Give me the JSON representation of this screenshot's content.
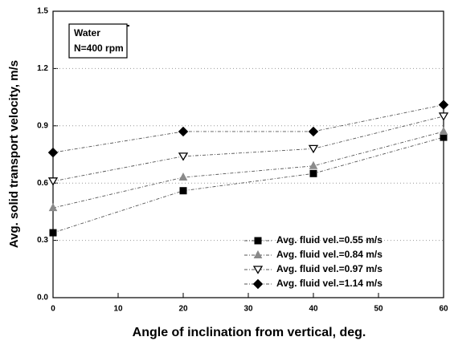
{
  "chart_data": {
    "type": "line",
    "xlabel": "Angle of inclination from vertical, deg.",
    "ylabel": "Avg. solid transport velocity, m/s",
    "annotation": [
      "Water",
      "N=400 rpm"
    ],
    "x": [
      0,
      20,
      40,
      60
    ],
    "series": [
      {
        "name": "Avg. fluid vel.=0.55 m/s",
        "color": "#000000",
        "marker": "square",
        "values": [
          0.34,
          0.56,
          0.65,
          0.84
        ]
      },
      {
        "name": "Avg. fluid vel.=0.84 m/s",
        "color": "#8a8a8a",
        "marker": "triangle-up",
        "values": [
          0.47,
          0.63,
          0.69,
          0.87
        ]
      },
      {
        "name": "Avg. fluid vel.=0.97 m/s",
        "color": "#000000",
        "marker": "triangle-down-open",
        "values": [
          0.61,
          0.74,
          0.78,
          0.95
        ]
      },
      {
        "name": "Avg. fluid vel.=1.14 m/s",
        "color": "#000000",
        "marker": "diamond",
        "values": [
          0.76,
          0.87,
          0.87,
          1.01
        ]
      }
    ],
    "xlim": [
      0,
      60
    ],
    "xticks": [
      0,
      10,
      20,
      30,
      40,
      50,
      60
    ],
    "ylim": [
      0,
      1.5
    ],
    "yticks": [
      {
        "value": 0,
        "label": "0.0"
      },
      0.3,
      0.6,
      0.9,
      1.2,
      1.5
    ],
    "grid": true,
    "legend": "lower right"
  }
}
